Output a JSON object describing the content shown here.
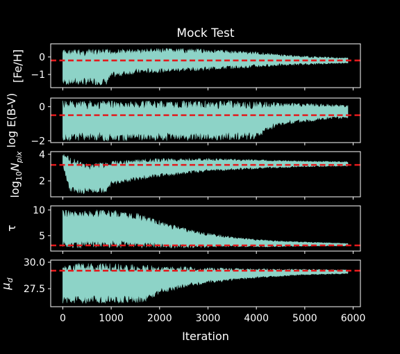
{
  "chart_data": {
    "type": "line",
    "title": "Mock Test",
    "xlabel": "Iteration",
    "xlim": [
      -250,
      6150
    ],
    "xticks": [
      0,
      1000,
      2000,
      3000,
      4000,
      5000,
      6000
    ],
    "n_iterations": 5900,
    "colors": {
      "trace": "#8dd3c7",
      "truth_line": "#e31a1c",
      "background": "#000000",
      "axes": "#ffffff"
    },
    "panels": [
      {
        "ylabel": "[Fe/H]",
        "ylim": [
          -1.75,
          0.75
        ],
        "yticks": [
          0,
          -1
        ],
        "ytick_labels": [
          "0",
          "−1"
        ],
        "truth": -0.2,
        "envelope": [
          {
            "x": 0,
            "lo": -1.6,
            "hi": 0.45
          },
          {
            "x": 500,
            "lo": -1.6,
            "hi": 0.45
          },
          {
            "x": 900,
            "lo": -1.6,
            "hi": 0.45
          },
          {
            "x": 1000,
            "lo": -1.2,
            "hi": 0.45
          },
          {
            "x": 1500,
            "lo": -0.95,
            "hi": 0.45
          },
          {
            "x": 2000,
            "lo": -0.9,
            "hi": 0.5
          },
          {
            "x": 3000,
            "lo": -0.75,
            "hi": 0.45
          },
          {
            "x": 4000,
            "lo": -0.6,
            "hi": 0.3
          },
          {
            "x": 4500,
            "lo": -0.5,
            "hi": 0.15
          },
          {
            "x": 5000,
            "lo": -0.45,
            "hi": 0.05
          },
          {
            "x": 5500,
            "lo": -0.4,
            "hi": 0.0
          },
          {
            "x": 5900,
            "lo": -0.35,
            "hi": -0.05
          }
        ]
      },
      {
        "ylabel": "log E(B-V)",
        "ylim": [
          -2.1,
          0.5
        ],
        "yticks": [
          0,
          -2
        ],
        "ytick_labels": [
          "0",
          "−2"
        ],
        "truth": -0.5,
        "envelope": [
          {
            "x": 0,
            "lo": -2.0,
            "hi": 0.35
          },
          {
            "x": 2000,
            "lo": -2.0,
            "hi": 0.35
          },
          {
            "x": 3500,
            "lo": -1.95,
            "hi": 0.35
          },
          {
            "x": 4000,
            "lo": -1.9,
            "hi": 0.3
          },
          {
            "x": 4200,
            "lo": -1.5,
            "hi": 0.3
          },
          {
            "x": 4500,
            "lo": -1.1,
            "hi": 0.25
          },
          {
            "x": 5000,
            "lo": -0.9,
            "hi": 0.2
          },
          {
            "x": 5500,
            "lo": -0.75,
            "hi": 0.15
          },
          {
            "x": 5900,
            "lo": -0.7,
            "hi": 0.1
          }
        ]
      },
      {
        "ylabel": "log10Npix",
        "ylim": [
          0.8,
          4.2
        ],
        "yticks": [
          2,
          4
        ],
        "ytick_labels": [
          "2",
          "4"
        ],
        "truth": 3.2,
        "envelope": [
          {
            "x": 0,
            "lo": 3.2,
            "hi": 4.0
          },
          {
            "x": 80,
            "lo": 2.0,
            "hi": 4.0
          },
          {
            "x": 150,
            "lo": 1.1,
            "hi": 3.8
          },
          {
            "x": 500,
            "lo": 1.0,
            "hi": 3.3
          },
          {
            "x": 900,
            "lo": 1.1,
            "hi": 3.4
          },
          {
            "x": 1000,
            "lo": 1.7,
            "hi": 3.5
          },
          {
            "x": 1500,
            "lo": 2.0,
            "hi": 3.6
          },
          {
            "x": 2000,
            "lo": 2.3,
            "hi": 3.7
          },
          {
            "x": 3000,
            "lo": 2.7,
            "hi": 3.7
          },
          {
            "x": 4000,
            "lo": 2.9,
            "hi": 3.6
          },
          {
            "x": 5000,
            "lo": 3.05,
            "hi": 3.5
          },
          {
            "x": 5900,
            "lo": 3.1,
            "hi": 3.45
          }
        ]
      },
      {
        "ylabel": "τ",
        "ylim": [
          2.0,
          10.8
        ],
        "yticks": [
          5,
          10
        ],
        "ytick_labels": [
          "5",
          "10"
        ],
        "truth": 3.1,
        "envelope": [
          {
            "x": 0,
            "lo": 2.6,
            "hi": 10.0
          },
          {
            "x": 1000,
            "lo": 2.6,
            "hi": 10.0
          },
          {
            "x": 1500,
            "lo": 2.6,
            "hi": 9.5
          },
          {
            "x": 2000,
            "lo": 2.6,
            "hi": 8.0
          },
          {
            "x": 2500,
            "lo": 2.6,
            "hi": 6.5
          },
          {
            "x": 3000,
            "lo": 2.7,
            "hi": 5.5
          },
          {
            "x": 3500,
            "lo": 2.8,
            "hi": 4.8
          },
          {
            "x": 4000,
            "lo": 2.8,
            "hi": 4.3
          },
          {
            "x": 4500,
            "lo": 2.8,
            "hi": 4.0
          },
          {
            "x": 5000,
            "lo": 2.9,
            "hi": 3.8
          },
          {
            "x": 5900,
            "lo": 3.0,
            "hi": 3.5
          }
        ]
      },
      {
        "ylabel": "μd",
        "ylim": [
          25.8,
          30.2
        ],
        "yticks": [
          27.5,
          30.0
        ],
        "ytick_labels": [
          "27.5",
          "30.0"
        ],
        "truth": 29.2,
        "envelope": [
          {
            "x": 0,
            "lo": 26.1,
            "hi": 29.9
          },
          {
            "x": 500,
            "lo": 26.1,
            "hi": 29.9
          },
          {
            "x": 1000,
            "lo": 26.1,
            "hi": 29.9
          },
          {
            "x": 1700,
            "lo": 26.2,
            "hi": 29.8
          },
          {
            "x": 2000,
            "lo": 27.0,
            "hi": 29.7
          },
          {
            "x": 2500,
            "lo": 27.6,
            "hi": 29.6
          },
          {
            "x": 3000,
            "lo": 28.0,
            "hi": 29.5
          },
          {
            "x": 4000,
            "lo": 28.5,
            "hi": 29.4
          },
          {
            "x": 5000,
            "lo": 28.8,
            "hi": 29.35
          },
          {
            "x": 5900,
            "lo": 28.9,
            "hi": 29.3
          }
        ]
      }
    ]
  }
}
